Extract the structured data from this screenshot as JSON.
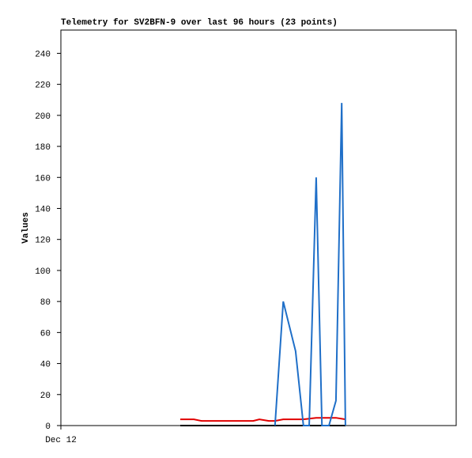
{
  "chart_data": {
    "type": "line",
    "title": "Telemetry for SV2BFN-9 over last 96 hours (23 points)",
    "y_label": "Values",
    "xlim": [
      0,
      96
    ],
    "xticks": [
      {
        "value": 0,
        "label": "Dec 12"
      }
    ],
    "ylim": [
      0,
      255
    ],
    "yticks": [
      0,
      20,
      40,
      60,
      80,
      100,
      120,
      140,
      160,
      180,
      200,
      220,
      240
    ],
    "series": [
      {
        "color": "#000000",
        "x": [
          29,
          40,
          52,
          60,
          69.1
        ],
        "values": [
          0,
          0,
          0,
          0,
          0
        ]
      },
      {
        "color": "#e00000",
        "x": [
          29,
          32.3,
          34.2,
          46.7,
          48.2,
          50.5,
          52,
          54,
          58.9,
          62,
          66.8,
          69.1
        ],
        "values": [
          4,
          4,
          3,
          3,
          4,
          3,
          3,
          4,
          4,
          5,
          5,
          4
        ]
      },
      {
        "color": "#1f6fc8",
        "x": [
          52,
          54,
          57,
          58.9,
          60.3,
          62,
          63.4,
          65.1,
          66.8,
          68.2,
          69.1
        ],
        "values": [
          0,
          80,
          48,
          0,
          0,
          160,
          0,
          0,
          16,
          208,
          0
        ]
      }
    ]
  }
}
